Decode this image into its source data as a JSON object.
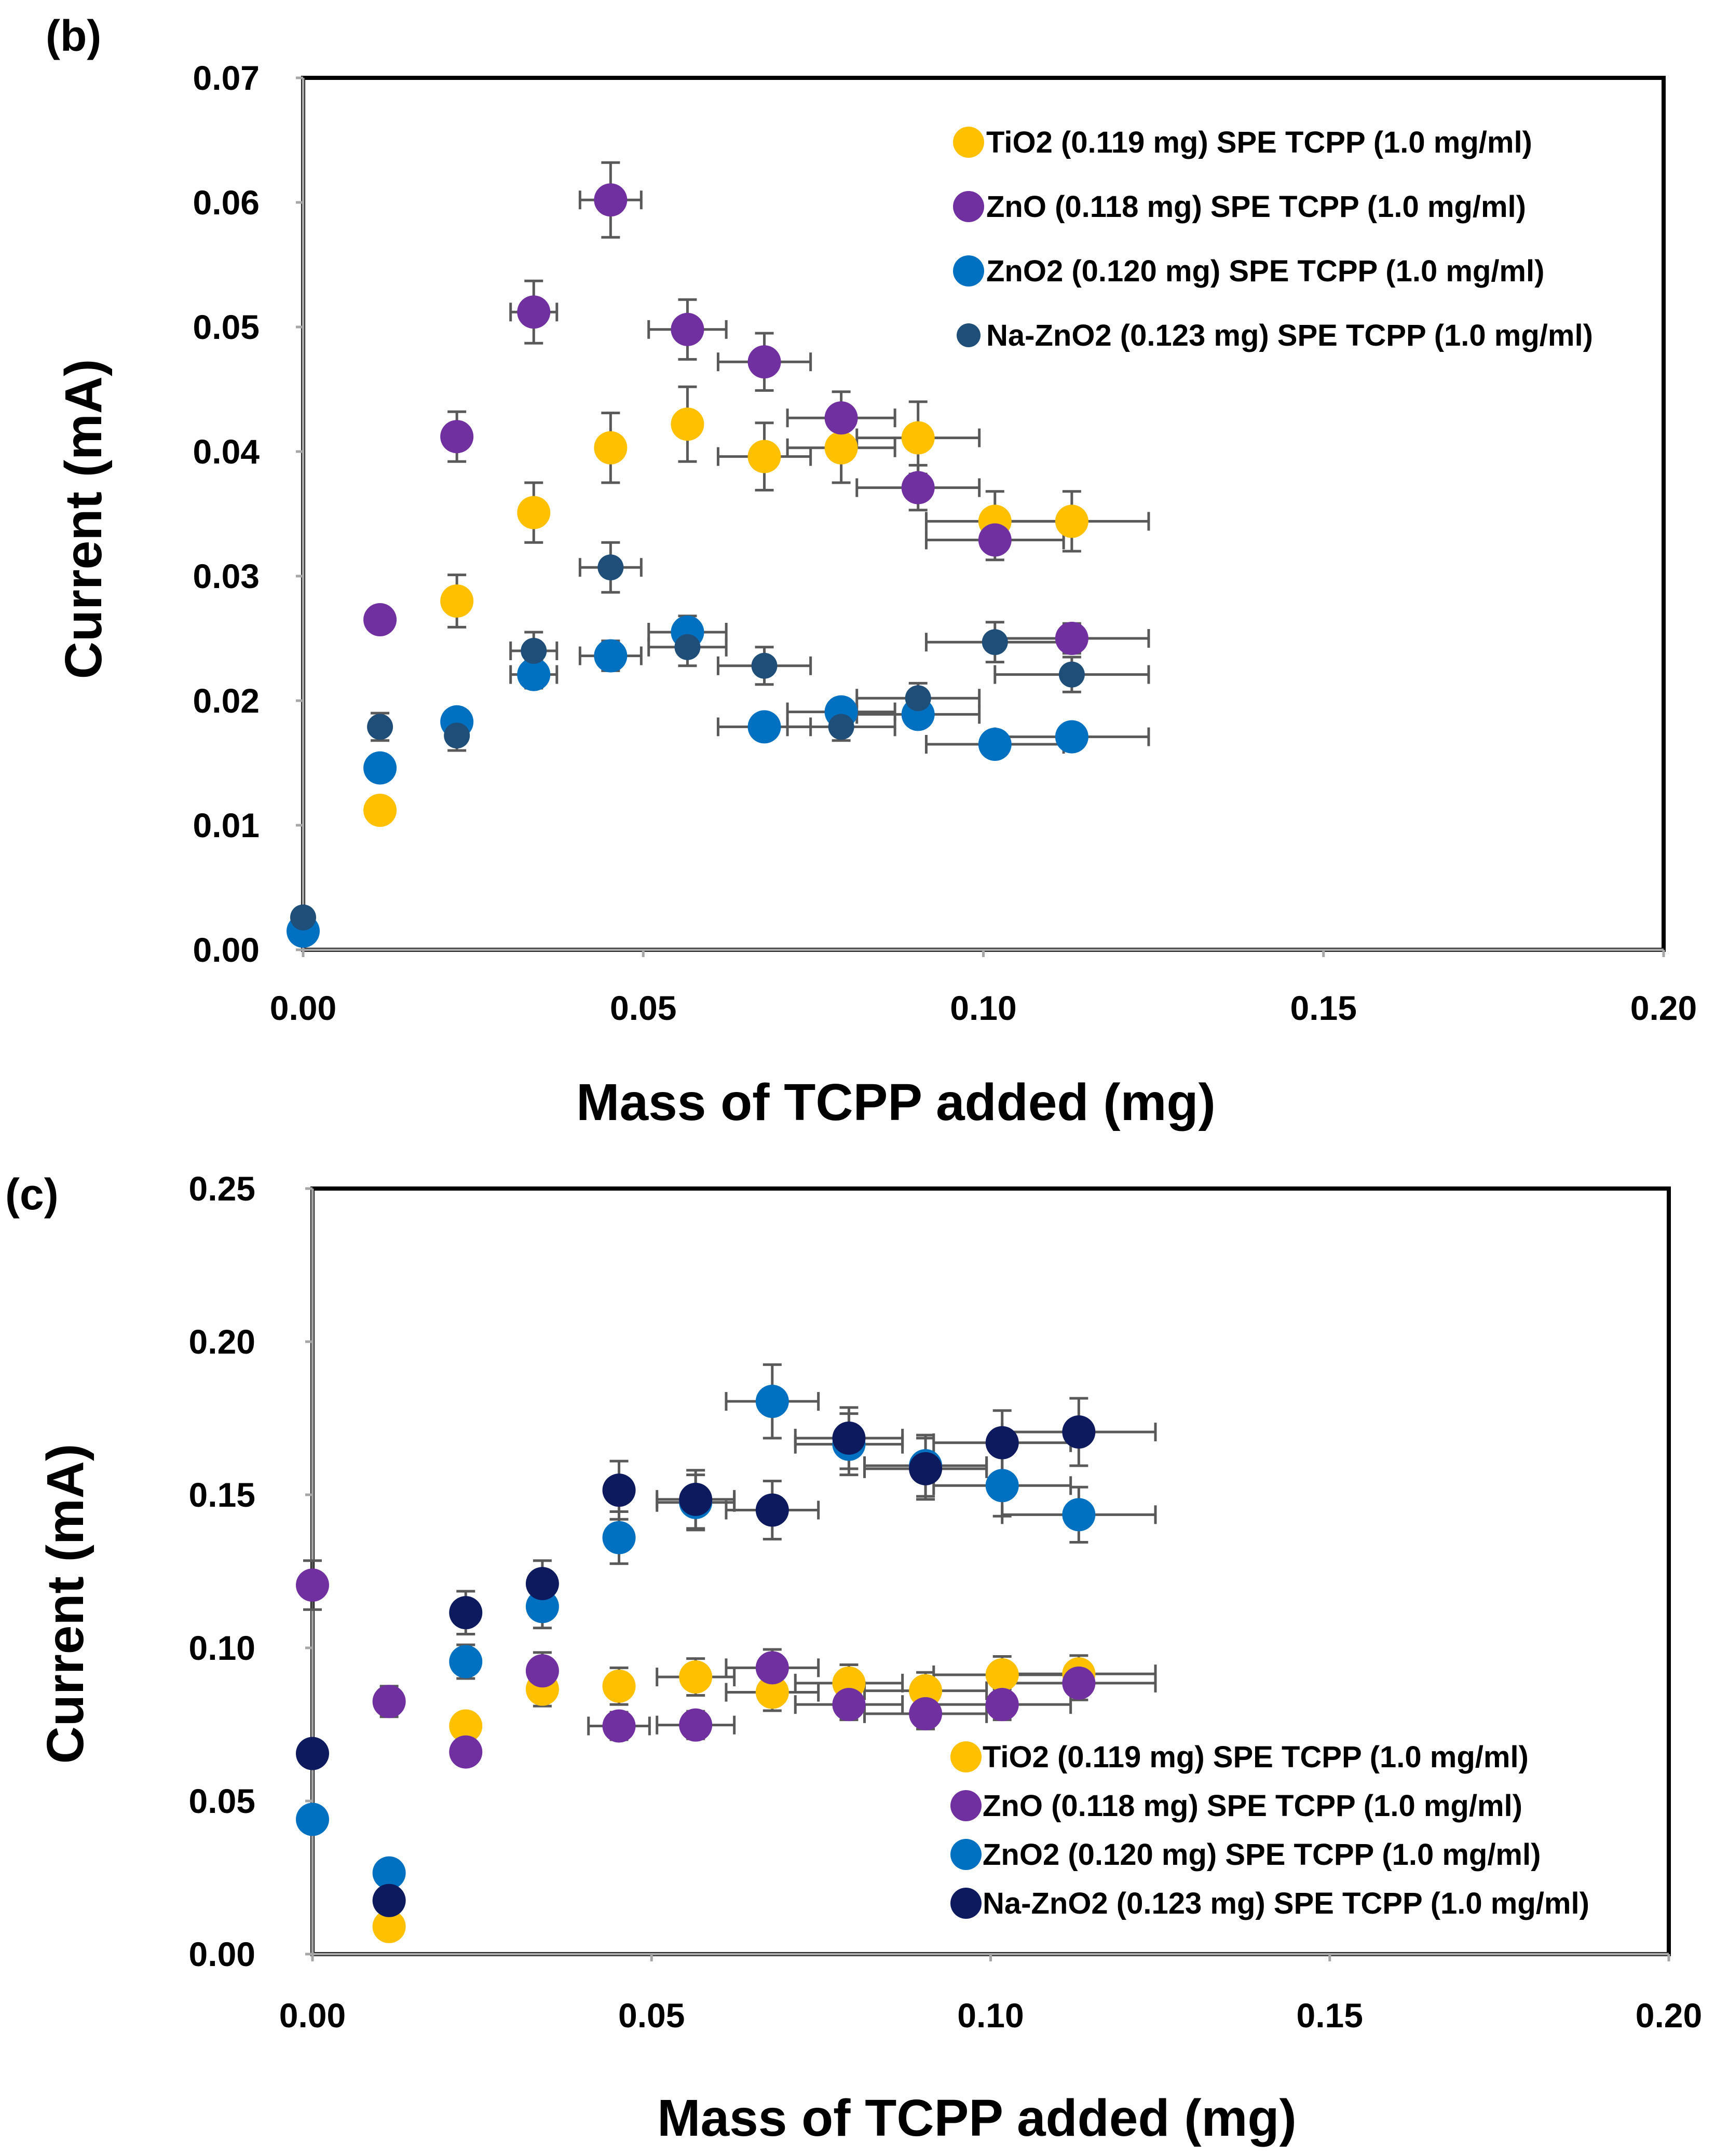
{
  "colors": {
    "TiO2": "#FFC000",
    "ZnO": "#7030A0",
    "ZnO2": "#0070C0",
    "NaZnO2_b": "#1F4E79",
    "NaZnO2_c": "#0D1B5E",
    "errorbar": "#595959",
    "axis": "#000000",
    "tick": "#A6A6A6"
  },
  "chart_data": [
    {
      "panel_label": "(b)",
      "type": "scatter",
      "xlabel": "Mass of TCPP added  (mg)",
      "ylabel": "Current  (mA)",
      "xlim": [
        0,
        0.2
      ],
      "ylim": [
        0,
        0.07
      ],
      "xticks": [
        0,
        0.05,
        0.1,
        0.15,
        0.2
      ],
      "xtick_labels": [
        "0.00",
        "0.05",
        "0.10",
        "0.15",
        "0.20"
      ],
      "yticks": [
        0,
        0.01,
        0.02,
        0.03,
        0.04,
        0.05,
        0.06,
        0.07
      ],
      "ytick_labels": [
        "0.00",
        "0.01",
        "0.02",
        "0.03",
        "0.04",
        "0.05",
        "0.06",
        "0.07"
      ],
      "legend_position": "top-right",
      "series": [
        {
          "name": "TiO2 (0.119 mg) SPE TCPP (1.0 mg/ml)",
          "color_key": "TiO2",
          "marker": "large",
          "x": [
            0.0113,
            0.0226,
            0.0339,
            0.0452,
            0.0565,
            0.0678,
            0.0791,
            0.0904,
            0.1017,
            0.113
          ],
          "y": [
            0.0112,
            0.028,
            0.0351,
            0.0403,
            0.0422,
            0.0396,
            0.0403,
            0.0411,
            0.0344,
            0.0344
          ],
          "yerr": [
            0,
            0.0021,
            0.0024,
            0.0028,
            0.003,
            0.0027,
            0.0028,
            0.0029,
            0.0024,
            0.0024
          ],
          "xerr": [
            0,
            0,
            0,
            0,
            0,
            0.0068,
            0.0079,
            0.009,
            0.0101,
            0.0113
          ]
        },
        {
          "name": "ZnO (0.118 mg) SPE TCPP (1.0 mg/ml)",
          "color_key": "ZnO",
          "marker": "large",
          "x": [
            0.0113,
            0.0226,
            0.0339,
            0.0452,
            0.0565,
            0.0678,
            0.0791,
            0.0904,
            0.1017,
            0.113
          ],
          "y": [
            0.0265,
            0.0412,
            0.0512,
            0.0602,
            0.0498,
            0.0472,
            0.0427,
            0.0371,
            0.0329,
            0.025
          ],
          "yerr": [
            0.001,
            0.002,
            0.0025,
            0.003,
            0.0024,
            0.0023,
            0.0021,
            0.0018,
            0.0016,
            0.0012
          ],
          "xerr": [
            0,
            0,
            0.0034,
            0.0045,
            0.0057,
            0.0068,
            0.0079,
            0.009,
            0.0101,
            0.0113
          ]
        },
        {
          "name": "ZnO2 (0.120 mg) SPE TCPP (1.0 mg/ml)",
          "color_key": "ZnO2",
          "marker": "large",
          "x": [
            0,
            0.0113,
            0.0226,
            0.0339,
            0.0452,
            0.0565,
            0.0678,
            0.0791,
            0.0904,
            0.1017,
            0.113
          ],
          "y": [
            0.0015,
            0.0146,
            0.0183,
            0.0221,
            0.0236,
            0.0255,
            0.0179,
            0.0191,
            0.0189,
            0.0165,
            0.0171
          ],
          "yerr": [
            0,
            0,
            0.0009,
            0.0011,
            0.0012,
            0.0013,
            0.0009,
            0.001,
            0.0009,
            0.0008,
            0.0009
          ],
          "xerr": [
            0,
            0,
            0,
            0.0034,
            0.0045,
            0.0057,
            0.0068,
            0.0079,
            0.009,
            0.0101,
            0.0113
          ]
        },
        {
          "name": "Na-ZnO2 (0.123 mg) SPE TCPP (1.0 mg/ml)",
          "color_key": "NaZnO2_b",
          "marker": "small",
          "x": [
            0,
            0.0113,
            0.0226,
            0.0339,
            0.0452,
            0.0565,
            0.0678,
            0.0791,
            0.0904,
            0.1017,
            0.113
          ],
          "y": [
            0.0026,
            0.0179,
            0.0172,
            0.024,
            0.0307,
            0.0243,
            0.0228,
            0.0179,
            0.0202,
            0.0247,
            0.0221
          ],
          "yerr": [
            0,
            0.0011,
            0.0012,
            0.0015,
            0.002,
            0.0015,
            0.0015,
            0.0011,
            0.0012,
            0.0016,
            0.0014
          ],
          "xerr": [
            0,
            0,
            0,
            0.0034,
            0.0045,
            0.0057,
            0.0068,
            0.0079,
            0.009,
            0.0101,
            0.0113
          ]
        }
      ]
    },
    {
      "panel_label": "(c)",
      "type": "scatter",
      "xlabel": "Mass of TCPP added (mg)",
      "ylabel": "Current (mA)",
      "xlim": [
        0,
        0.2
      ],
      "ylim": [
        0,
        0.25
      ],
      "xticks": [
        0,
        0.05,
        0.1,
        0.15,
        0.2
      ],
      "xtick_labels": [
        "0.00",
        "0.05",
        "0.10",
        "0.15",
        "0.20"
      ],
      "yticks": [
        0,
        0.05,
        0.1,
        0.15,
        0.2,
        0.25
      ],
      "ytick_labels": [
        "0.00",
        "0.05",
        "0.10",
        "0.15",
        "0.20",
        "0.25"
      ],
      "legend_position": "bottom-right",
      "series": [
        {
          "name": "TiO2 (0.119 mg) SPE TCPP (1.0 mg/ml)",
          "color_key": "TiO2",
          "marker": "large",
          "x": [
            0.0113,
            0.0226,
            0.0339,
            0.0452,
            0.0565,
            0.0678,
            0.0791,
            0.0904,
            0.1017,
            0.113
          ],
          "y": [
            0.009,
            0.0745,
            0.0865,
            0.0875,
            0.0905,
            0.0855,
            0.0885,
            0.086,
            0.0912,
            0.0915
          ],
          "yerr": [
            0,
            0.004,
            0.0055,
            0.006,
            0.006,
            0.006,
            0.006,
            0.006,
            0.006,
            0.006
          ],
          "xerr": [
            0,
            0,
            0,
            0,
            0.0057,
            0.0068,
            0.0079,
            0.009,
            0.0101,
            0.0113
          ]
        },
        {
          "name": "ZnO (0.118 mg) SPE TCPP (1.0 mg/ml)",
          "color_key": "ZnO",
          "marker": "large",
          "x": [
            0,
            0.0113,
            0.0226,
            0.0339,
            0.0452,
            0.0565,
            0.0678,
            0.0791,
            0.0904,
            0.1017,
            0.113
          ],
          "y": [
            0.1205,
            0.0825,
            0.066,
            0.0925,
            0.0745,
            0.0748,
            0.0935,
            0.0815,
            0.0785,
            0.0815,
            0.0885
          ],
          "yerr": [
            0.008,
            0.005,
            0.004,
            0.006,
            0.0045,
            0.0045,
            0.006,
            0.005,
            0.005,
            0.005,
            0.0055
          ],
          "xerr": [
            0,
            0,
            0,
            0,
            0.0045,
            0.0057,
            0.0068,
            0.0079,
            0.009,
            0.0101,
            0.0113
          ]
        },
        {
          "name": "ZnO2 (0.120 mg) SPE TCPP (1.0 mg/ml)",
          "color_key": "ZnO2",
          "marker": "large",
          "x": [
            0,
            0.0113,
            0.0226,
            0.0339,
            0.0452,
            0.0565,
            0.0678,
            0.0791,
            0.0904,
            0.1017,
            0.113
          ],
          "y": [
            0.044,
            0.0265,
            0.0955,
            0.1135,
            0.136,
            0.1475,
            0.1805,
            0.1665,
            0.1595,
            0.153,
            0.1435
          ],
          "yerr": [
            0,
            0,
            0.0055,
            0.007,
            0.0085,
            0.009,
            0.012,
            0.01,
            0.01,
            0.01,
            0.009
          ],
          "xerr": [
            0,
            0,
            0,
            0,
            0,
            0.0057,
            0.0068,
            0.0079,
            0.009,
            0.0101,
            0.0113
          ]
        },
        {
          "name": "Na-ZnO2 (0.123 mg) SPE TCPP (1.0 mg/ml)",
          "color_key": "NaZnO2_c",
          "marker": "large",
          "x": [
            0,
            0.0113,
            0.0226,
            0.0339,
            0.0452,
            0.0565,
            0.0678,
            0.0791,
            0.0904,
            0.1017,
            0.113
          ],
          "y": [
            0.0655,
            0.0175,
            0.1115,
            0.121,
            0.1515,
            0.1485,
            0.145,
            0.1685,
            0.1585,
            0.167,
            0.1705
          ],
          "yerr": [
            0,
            0,
            0.007,
            0.0075,
            0.0095,
            0.0095,
            0.0095,
            0.01,
            0.01,
            0.0105,
            0.011
          ],
          "xerr": [
            0,
            0,
            0,
            0,
            0,
            0.0057,
            0.0068,
            0.0079,
            0.009,
            0.0101,
            0.0113
          ]
        }
      ]
    }
  ]
}
